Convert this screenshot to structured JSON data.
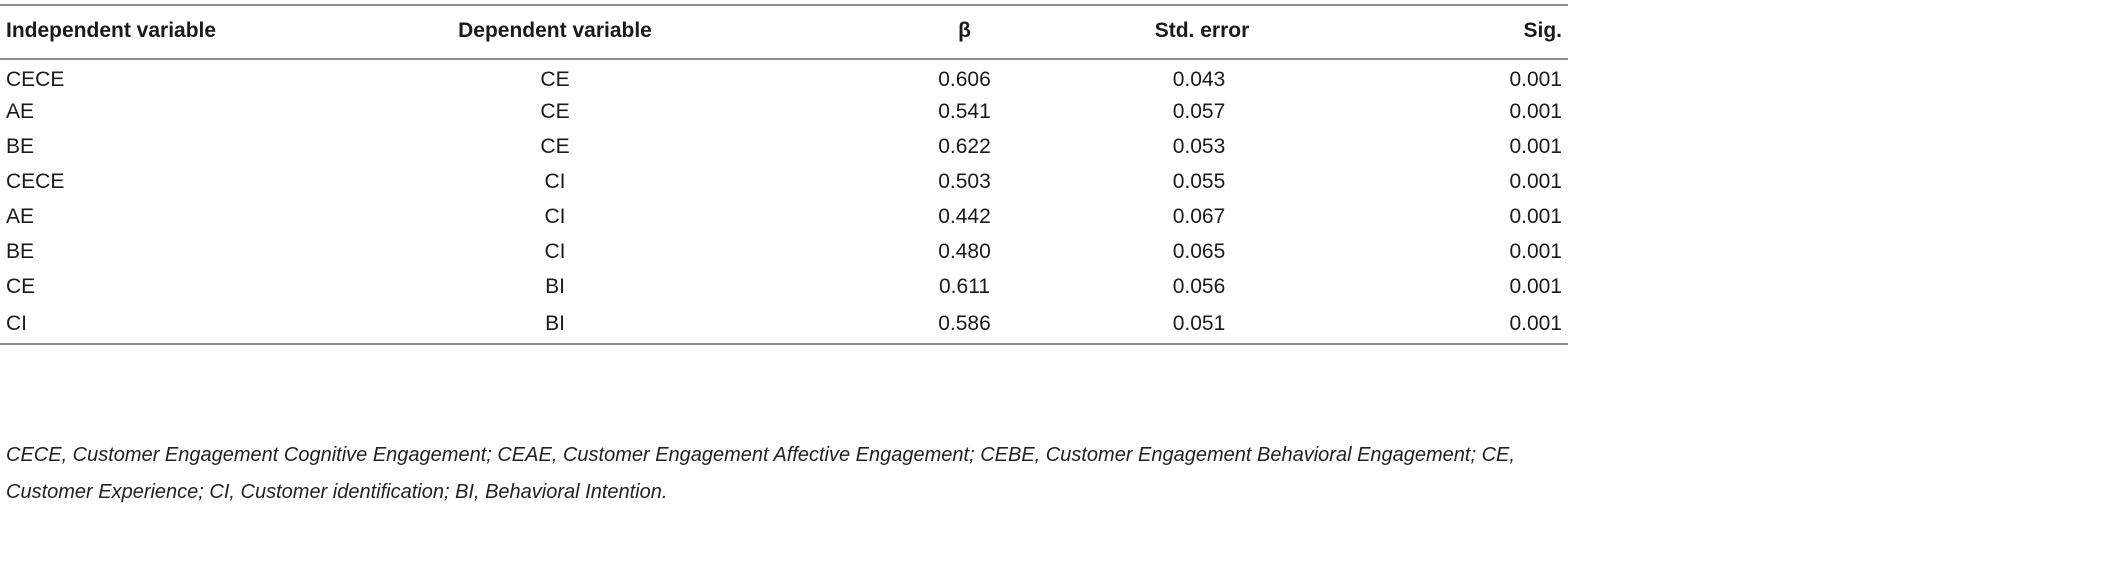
{
  "table": {
    "headers": [
      "Independent variable",
      "Dependent variable",
      "β",
      "Std. error",
      "Sig."
    ],
    "rows": [
      {
        "independent": "CECE",
        "dependent": "CE",
        "beta": "0.606",
        "std_error": "0.043",
        "sig": "0.001"
      },
      {
        "independent": "AE",
        "dependent": "CE",
        "beta": "0.541",
        "std_error": "0.057",
        "sig": "0.001"
      },
      {
        "independent": "BE",
        "dependent": "CE",
        "beta": "0.622",
        "std_error": "0.053",
        "sig": "0.001"
      },
      {
        "independent": "CECE",
        "dependent": "CI",
        "beta": "0.503",
        "std_error": "0.055",
        "sig": "0.001"
      },
      {
        "independent": "AE",
        "dependent": "CI",
        "beta": "0.442",
        "std_error": "0.067",
        "sig": "0.001"
      },
      {
        "independent": "BE",
        "dependent": "CI",
        "beta": "0.480",
        "std_error": "0.065",
        "sig": "0.001"
      },
      {
        "independent": "CE",
        "dependent": "BI",
        "beta": "0.611",
        "std_error": "0.056",
        "sig": "0.001"
      },
      {
        "independent": "CI",
        "dependent": "BI",
        "beta": "0.586",
        "std_error": "0.051",
        "sig": "0.001"
      }
    ]
  },
  "footnote": "CECE, Customer Engagement Cognitive Engagement; CEAE, Customer Engagement Affective Engagement; CEBE, Customer Engagement Behavioral Engagement; CE, Customer Experience; CI, Customer identification; BI, Behavioral Intention.",
  "colors": {
    "rule": "#8c8c8c",
    "text": "#1a1a1a"
  }
}
